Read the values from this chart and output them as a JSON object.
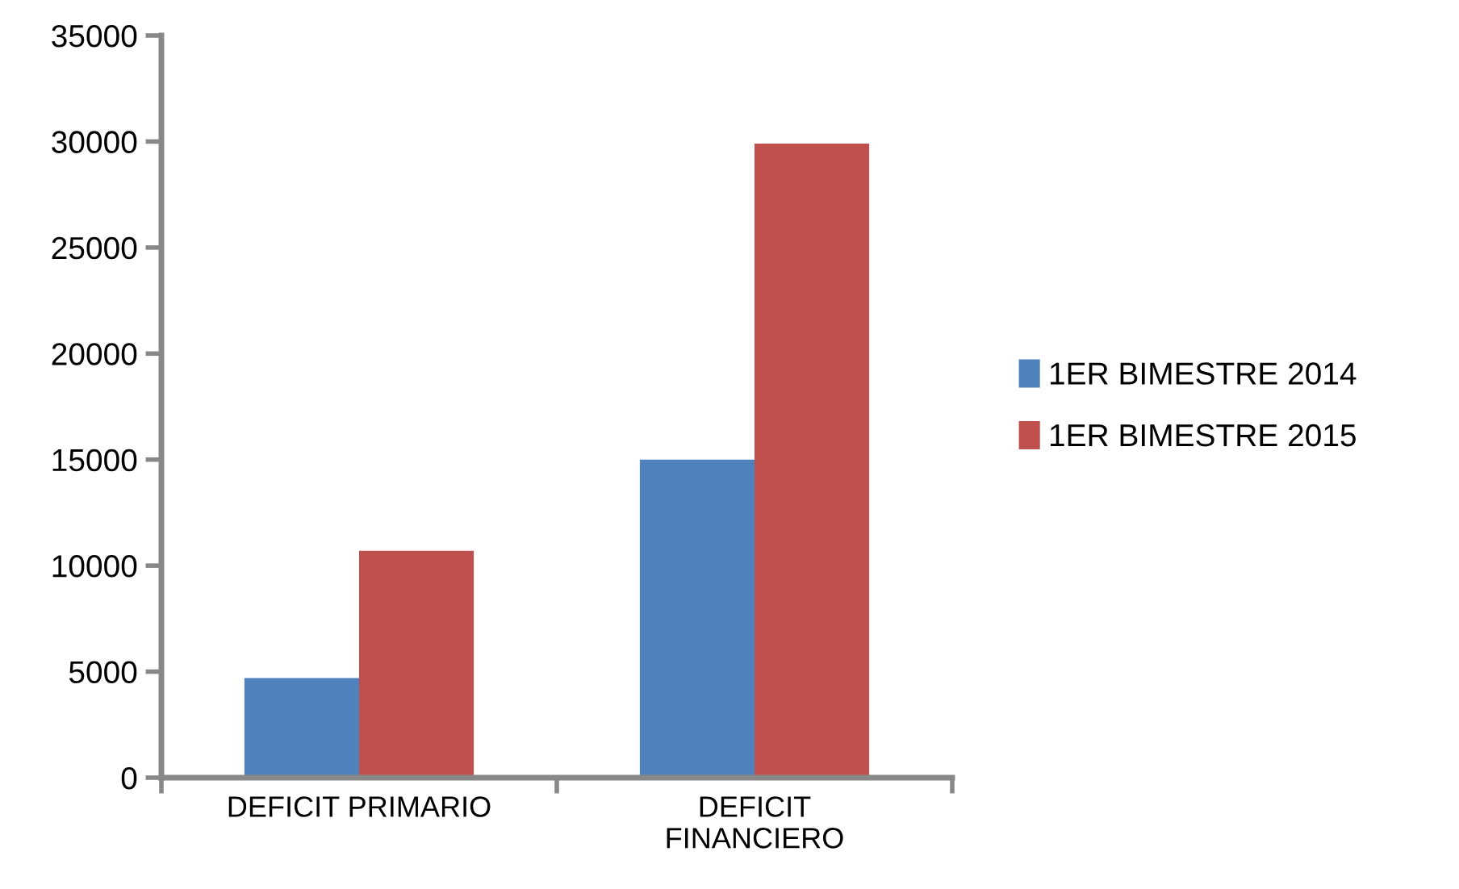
{
  "chart_data": {
    "type": "bar",
    "categories": [
      "DEFICIT PRIMARIO",
      "DEFICIT\nFINANCIERO"
    ],
    "series": [
      {
        "name": "1ER BIMESTRE 2014",
        "color": "#4f81bd",
        "values": [
          4700,
          15000
        ]
      },
      {
        "name": "1ER BIMESTRE 2015",
        "color": "#c0504d",
        "values": [
          10700,
          29900
        ]
      }
    ],
    "ylim": [
      0,
      35000
    ],
    "yticks": [
      0,
      5000,
      10000,
      15000,
      20000,
      25000,
      30000,
      35000
    ],
    "grid": false,
    "legend": "right"
  }
}
